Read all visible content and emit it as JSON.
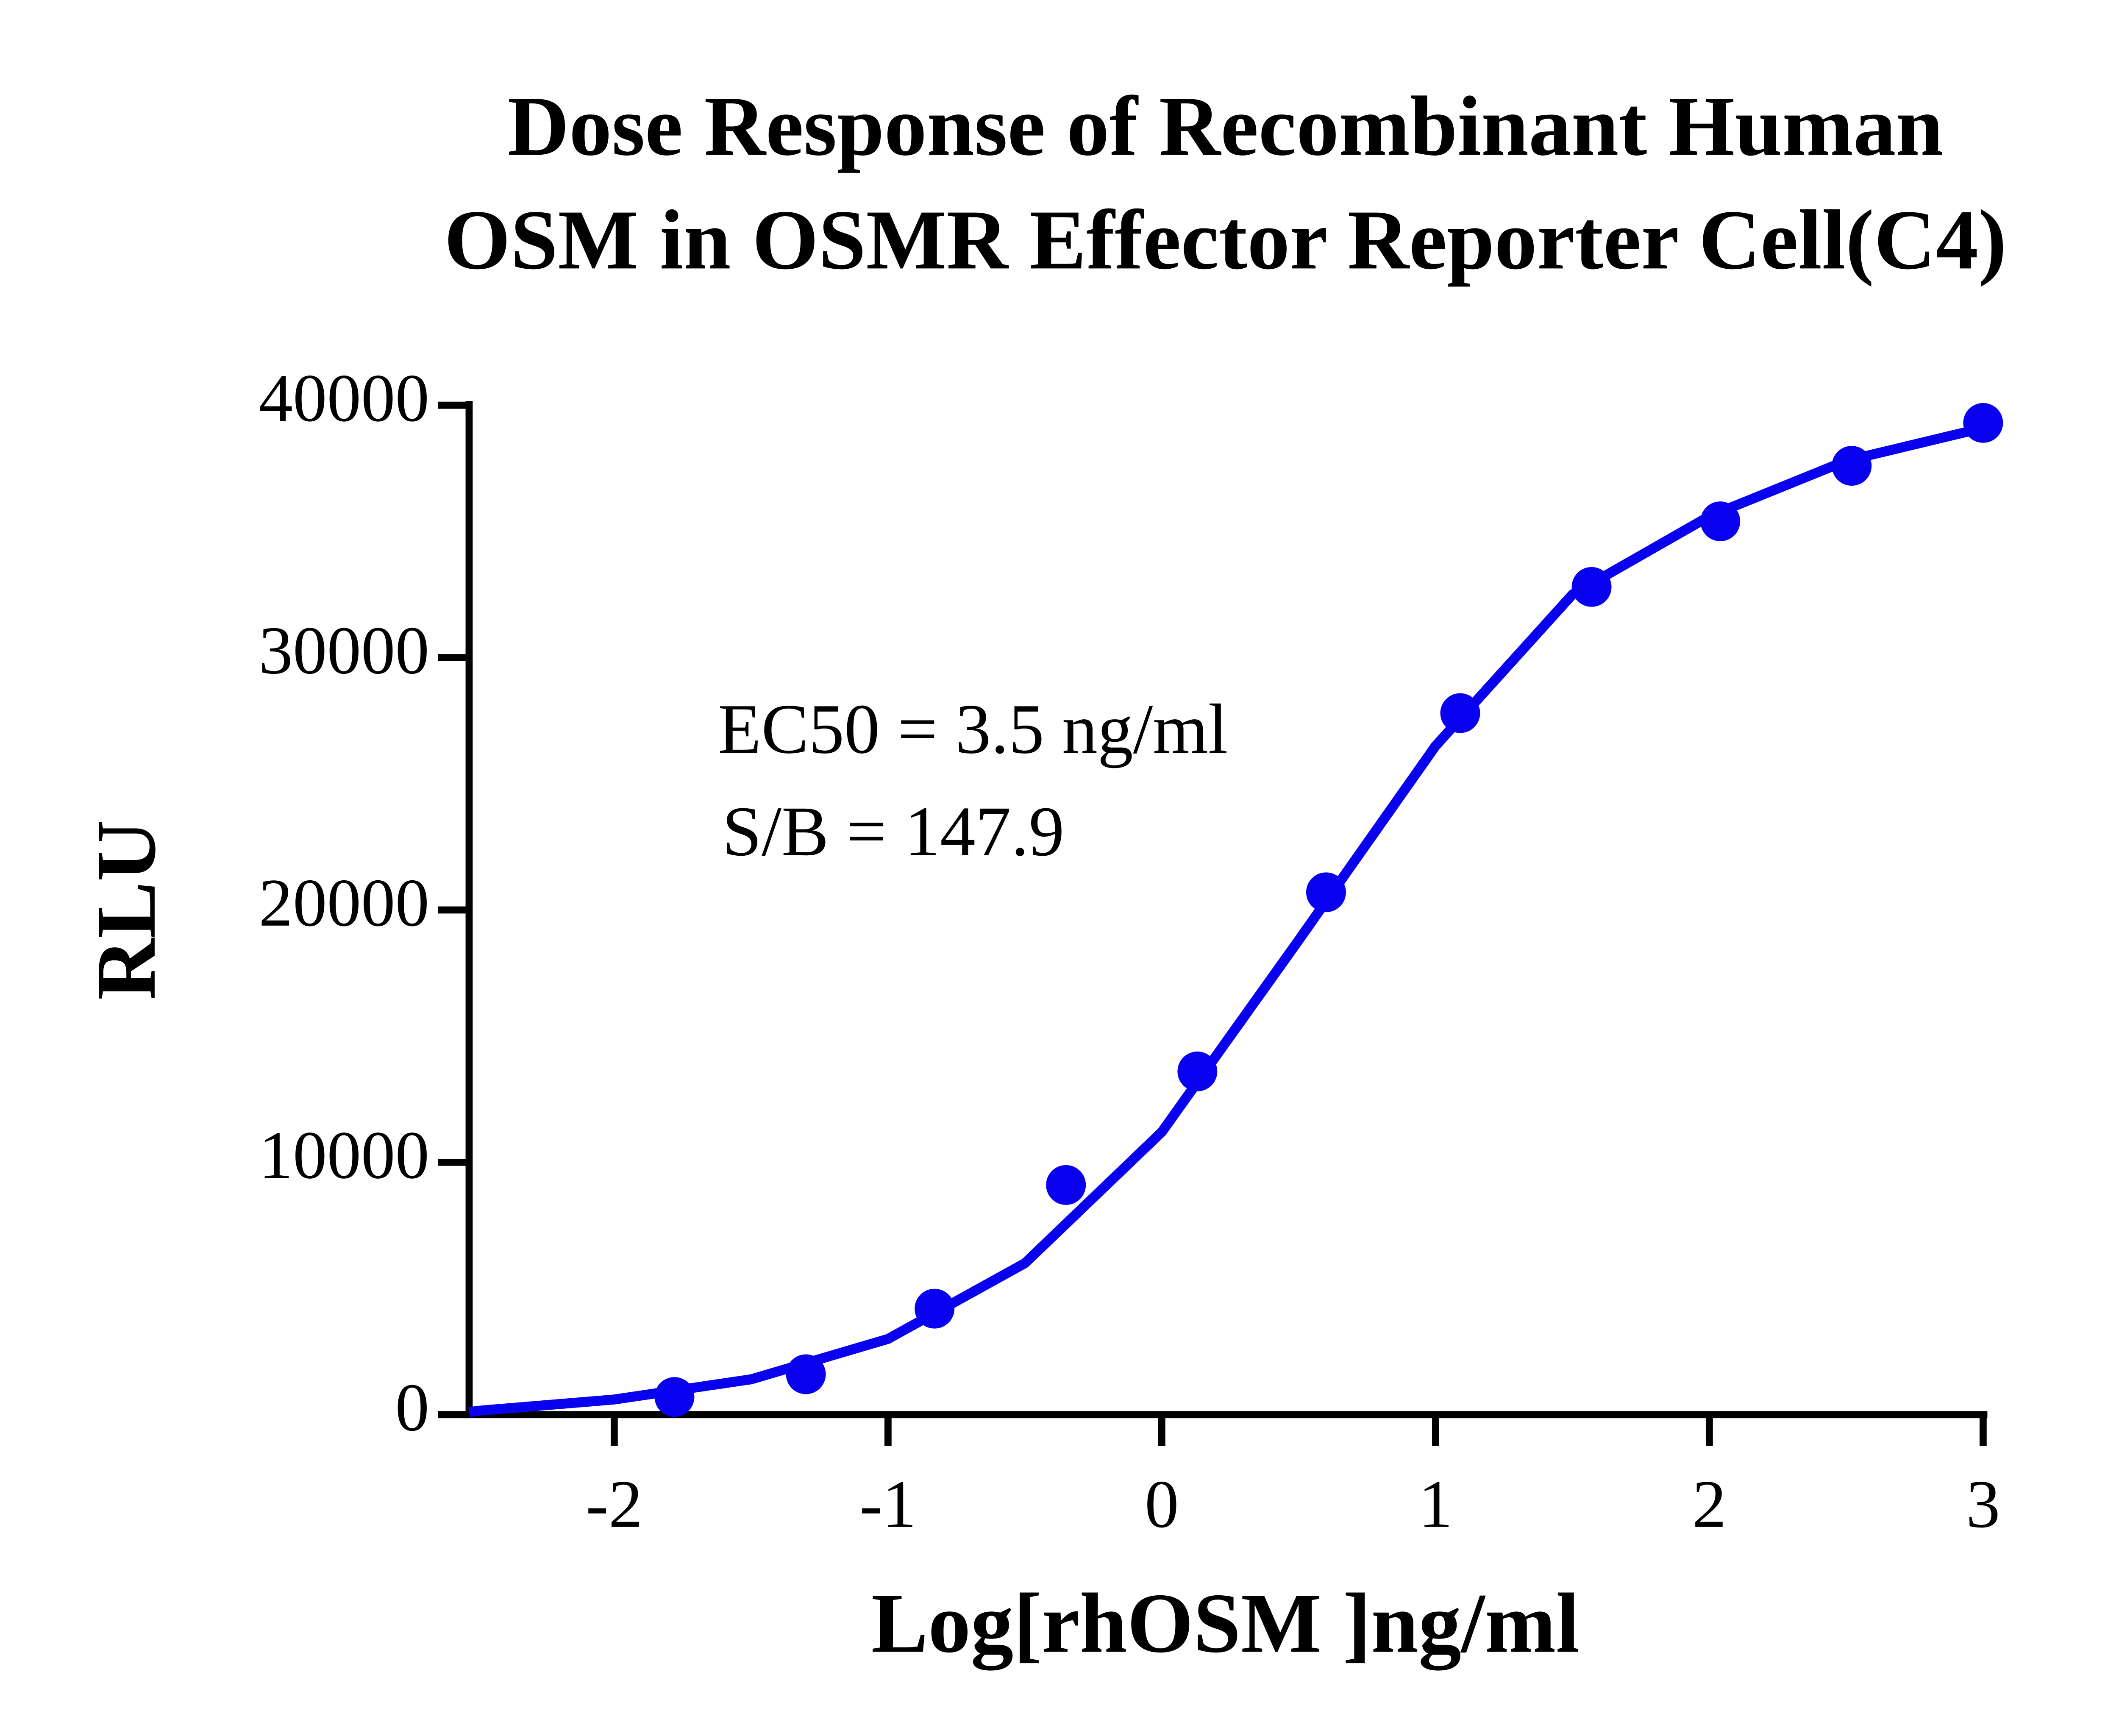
{
  "chart_data": {
    "type": "scatter",
    "title": [
      "Dose Response of Recombinant Human",
      "OSM in OSMR Effector Reporter Cell(C4)"
    ],
    "x_label": "Log[rhOSM ]ng/ml",
    "y_label": "RLU",
    "annotations": [
      "EC50 = 3.5 ng/ml",
      "S/B = 147.9"
    ],
    "xlim": [
      -2.53,
      3
    ],
    "ylim": [
      0,
      40000
    ],
    "xticks": [
      -2,
      -1,
      0,
      1,
      2,
      3
    ],
    "yticks": [
      0,
      10000,
      20000,
      30000,
      40000
    ],
    "color": "#0a00f0",
    "series": [
      {
        "mode": "markers",
        "color": "#0a00f0",
        "x": [
          -1.78,
          -1.3,
          -0.83,
          -0.35,
          0.13,
          0.6,
          1.09,
          1.57,
          2.04,
          2.52,
          3.0
        ],
        "values": [
          700,
          1600,
          4200,
          9100,
          13600,
          20700,
          27800,
          32800,
          35400,
          37600,
          39300
        ]
      },
      {
        "mode": "line",
        "color": "#0a00f0",
        "x": [
          -2.53,
          -2.5,
          -2,
          -1.5,
          -1,
          -0.5,
          0,
          0.5,
          1,
          1.5,
          2,
          2.5,
          3
        ],
        "values": [
          100,
          150,
          600,
          1400,
          3000,
          6000,
          11200,
          18800,
          26500,
          32500,
          35600,
          37800,
          39100
        ]
      }
    ]
  }
}
